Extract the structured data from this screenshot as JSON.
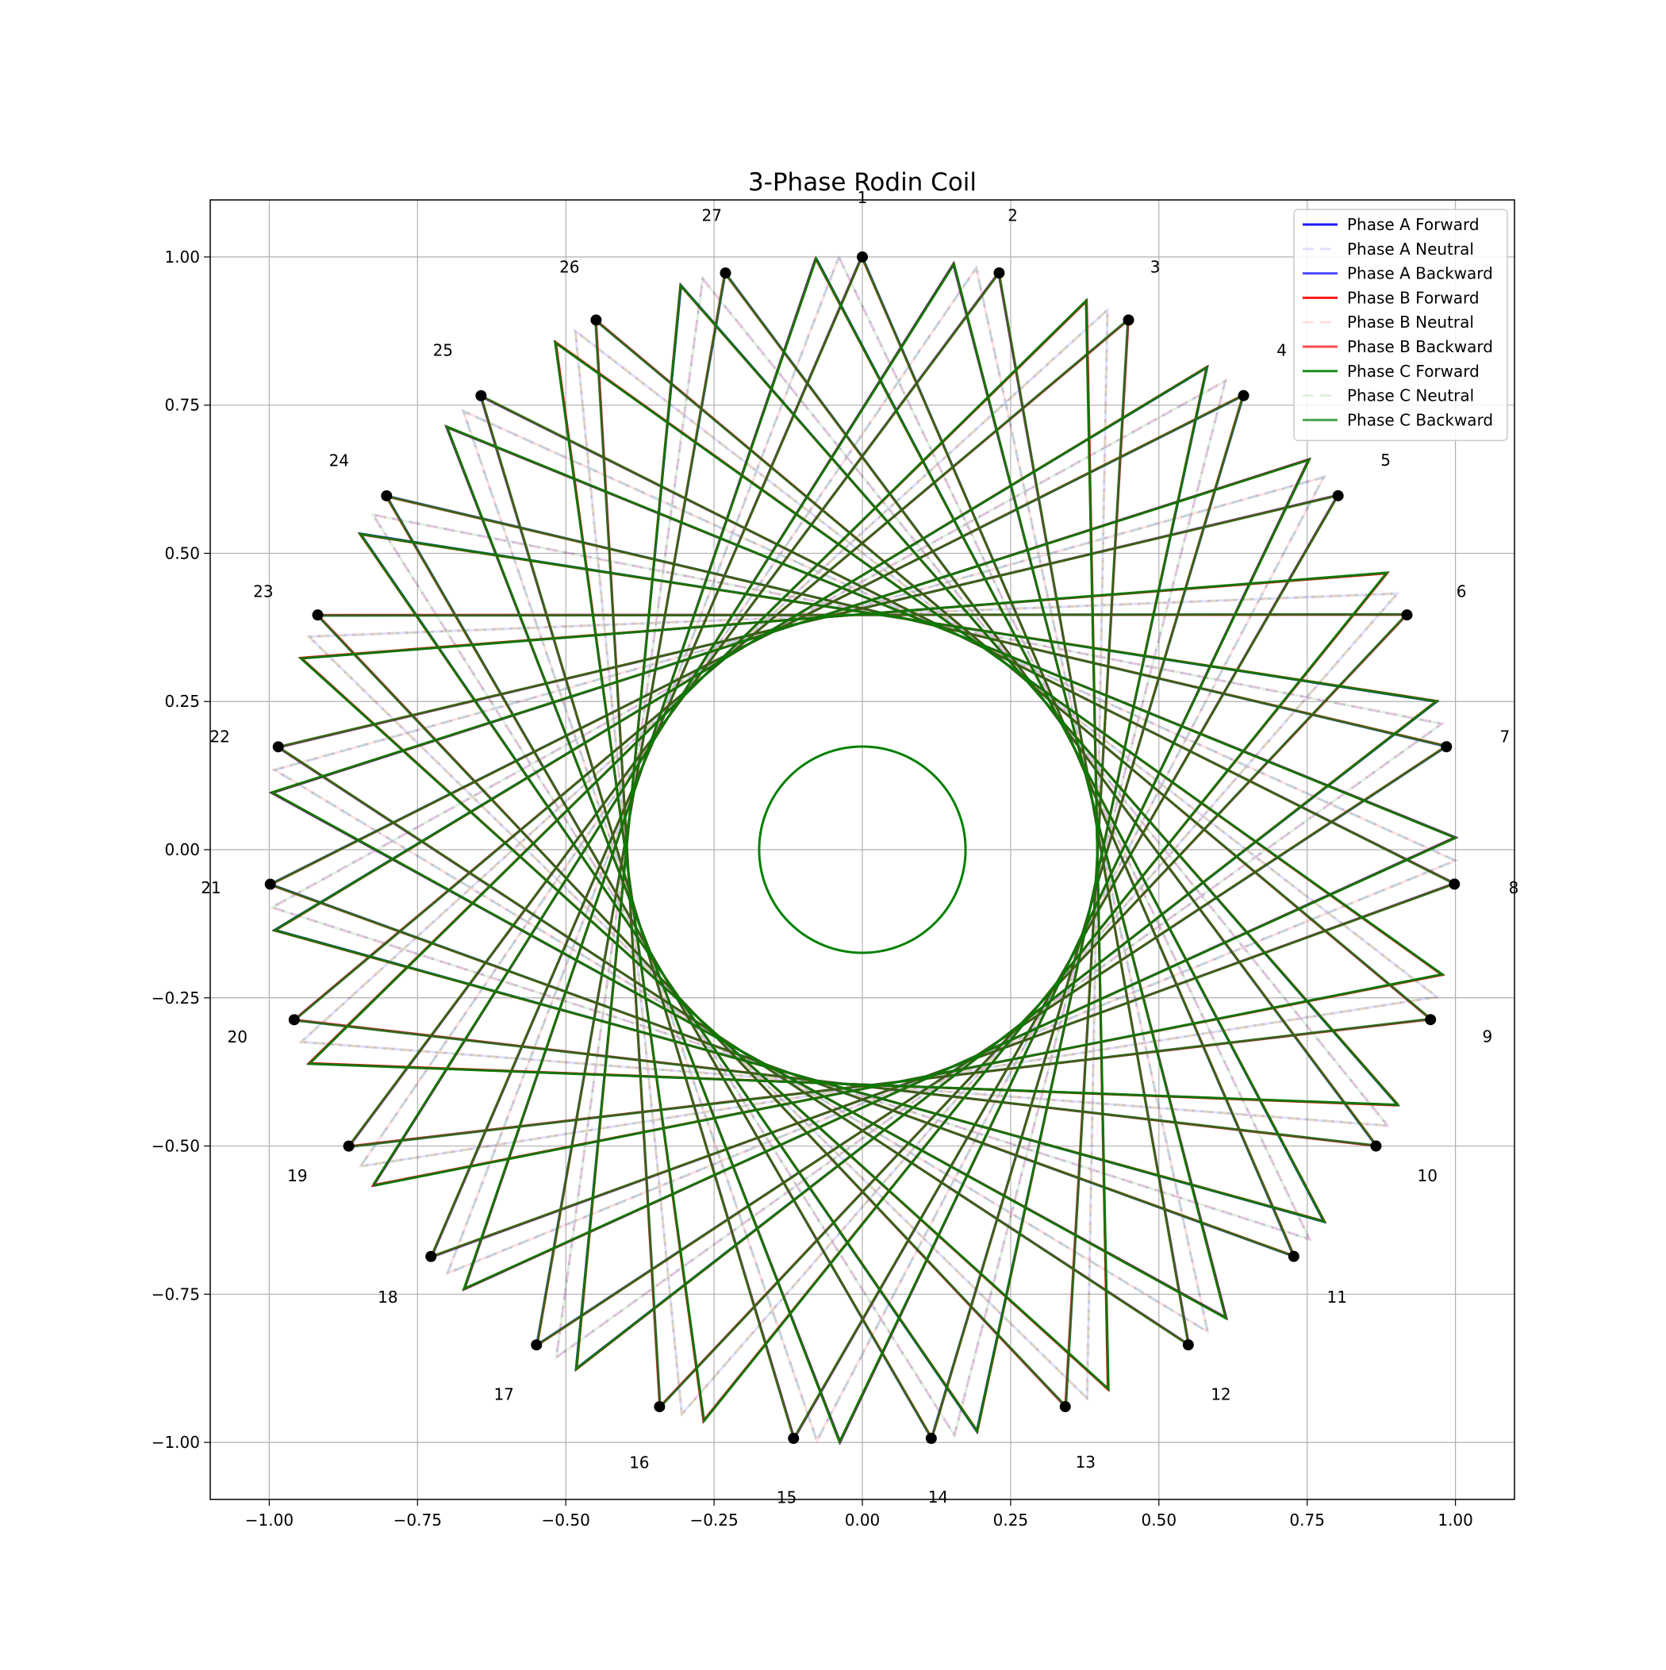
{
  "chart_data": {
    "type": "line",
    "title": "3-Phase Rodin Coil",
    "xlabel": "",
    "ylabel": "",
    "xlim": [
      -1.1,
      1.1
    ],
    "ylim": [
      -1.1,
      1.1
    ],
    "xticks": [
      "−1.00",
      "−0.75",
      "−0.50",
      "−0.25",
      "0.00",
      "0.25",
      "0.50",
      "0.75",
      "1.00"
    ],
    "xtick_values": [
      -1.0,
      -0.75,
      -0.5,
      -0.25,
      0.0,
      0.25,
      0.5,
      0.75,
      1.0
    ],
    "yticks": [
      "1.00",
      "0.75",
      "0.50",
      "0.25",
      "0.00",
      "−0.25",
      "−0.50",
      "−0.75",
      "−1.00"
    ],
    "ytick_values": [
      1.0,
      0.75,
      0.5,
      0.25,
      0.0,
      -0.25,
      -0.5,
      -0.75,
      -1.0
    ],
    "grid": true,
    "legend_position": "top-right",
    "num_slots": 27,
    "slot_labels": [
      "1",
      "2",
      "3",
      "4",
      "5",
      "6",
      "7",
      "8",
      "9",
      "10",
      "11",
      "12",
      "13",
      "14",
      "15",
      "16",
      "17",
      "18",
      "19",
      "20",
      "21",
      "22",
      "23",
      "24",
      "25",
      "26",
      "27"
    ],
    "slot_spacing_deg": 13.333,
    "winding_step": 10,
    "hub_radius": 0.174,
    "series": [
      {
        "name": "Phase A Forward",
        "color": "#0000ff",
        "style": "solid",
        "alpha": 0.9,
        "phase_offset_deg": 0,
        "rotation_deg": -4.444
      },
      {
        "name": "Phase A Neutral",
        "color": "#0000ff",
        "style": "dashed",
        "alpha": 0.12,
        "phase_offset_deg": 0,
        "rotation_deg": -2.222
      },
      {
        "name": "Phase A Backward",
        "color": "#0000ff",
        "style": "solid",
        "alpha": 0.7,
        "phase_offset_deg": 0,
        "rotation_deg": 0
      },
      {
        "name": "Phase B Forward",
        "color": "#ff0000",
        "style": "solid",
        "alpha": 0.9,
        "phase_offset_deg": 120,
        "rotation_deg": -4.444
      },
      {
        "name": "Phase B Neutral",
        "color": "#ff0000",
        "style": "dashed",
        "alpha": 0.12,
        "phase_offset_deg": 120,
        "rotation_deg": -2.222
      },
      {
        "name": "Phase B Backward",
        "color": "#ff0000",
        "style": "solid",
        "alpha": 0.7,
        "phase_offset_deg": 120,
        "rotation_deg": 0
      },
      {
        "name": "Phase C Forward",
        "color": "#008000",
        "style": "solid",
        "alpha": 0.9,
        "phase_offset_deg": 240,
        "rotation_deg": -4.444
      },
      {
        "name": "Phase C Neutral",
        "color": "#008000",
        "style": "dashed",
        "alpha": 0.12,
        "phase_offset_deg": 240,
        "rotation_deg": -2.222
      },
      {
        "name": "Phase C Backward",
        "color": "#008000",
        "style": "solid",
        "alpha": 0.7,
        "phase_offset_deg": 240,
        "rotation_deg": 0
      }
    ]
  }
}
